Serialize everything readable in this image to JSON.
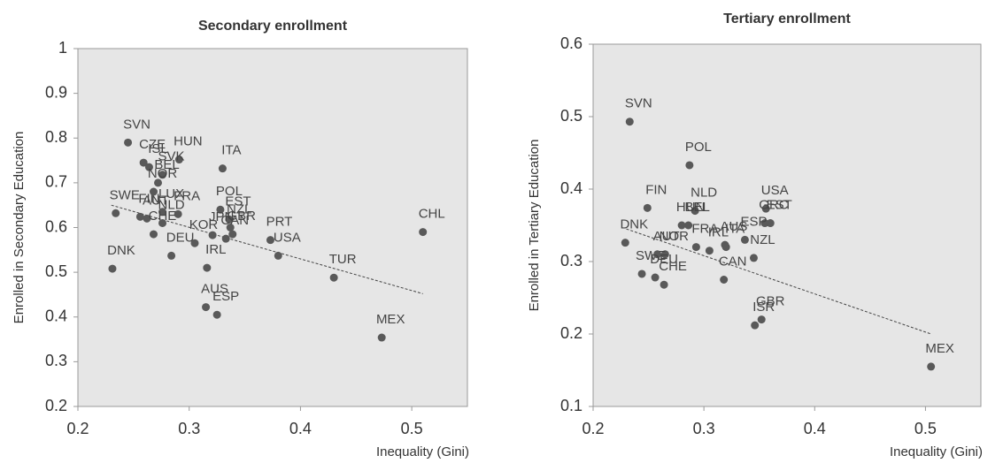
{
  "chart_data": [
    {
      "type": "scatter",
      "title": "Secondary enrollment",
      "x_label": "Inequality (Gini)",
      "y_label": "Enrolled in Secondary Education",
      "color": "#595959",
      "xlim": [
        0.2,
        0.55
      ],
      "ylim": [
        0.2,
        1
      ],
      "xticks": [
        0.2,
        0.3,
        0.4,
        0.5
      ],
      "yticks": [
        0.2,
        0.3,
        0.4,
        0.5,
        0.6,
        0.7,
        0.8,
        0.9,
        1
      ],
      "labels": [
        "SVN",
        "CZE",
        "HUN",
        "SVK",
        "ISL",
        "BEL",
        "ITA",
        "SWE",
        "FIN",
        "AUT",
        "NOR",
        "LUX",
        "FRA",
        "CHE",
        "NLD",
        "DEU",
        "KOR",
        "IRL",
        "DNK",
        "POL",
        "EST",
        "JPN",
        "NZL",
        "CAN",
        "GBR",
        "AUS",
        "ESP",
        "PRT",
        "USA",
        "TUR",
        "MEX",
        "CHL"
      ],
      "x": [
        0.245,
        0.259,
        0.291,
        0.276,
        0.264,
        0.272,
        0.33,
        0.234,
        0.256,
        0.262,
        0.268,
        0.276,
        0.29,
        0.268,
        0.276,
        0.284,
        0.305,
        0.316,
        0.231,
        0.328,
        0.336,
        0.321,
        0.337,
        0.333,
        0.339,
        0.315,
        0.325,
        0.373,
        0.38,
        0.43,
        0.473,
        0.51
      ],
      "values": [
        0.79,
        0.745,
        0.752,
        0.718,
        0.735,
        0.7,
        0.732,
        0.632,
        0.624,
        0.62,
        0.68,
        0.635,
        0.63,
        0.585,
        0.61,
        0.537,
        0.565,
        0.51,
        0.508,
        0.64,
        0.618,
        0.583,
        0.6,
        0.575,
        0.585,
        0.422,
        0.405,
        0.572,
        0.537,
        0.488,
        0.354,
        0.59
      ],
      "trendline": {
        "x": [
          0.23,
          0.51
        ],
        "values": [
          0.65,
          0.452
        ]
      }
    },
    {
      "type": "scatter",
      "title": "Tertiary enrollment",
      "x_label": "Inequality (Gini)",
      "y_label": "Enrolled in Tertiary Education",
      "color": "#595959",
      "xlim": [
        0.2,
        0.55
      ],
      "ylim": [
        0.1,
        0.6
      ],
      "xticks": [
        0.2,
        0.3,
        0.4,
        0.5
      ],
      "yticks": [
        0.1,
        0.2,
        0.3,
        0.4,
        0.5,
        0.6
      ],
      "labels": [
        "SVN",
        "POL",
        "FIN",
        "NLD",
        "USA",
        "GRC",
        "EST",
        "BEL",
        "DNK",
        "NOR",
        "HUN",
        "FRA",
        "AUS",
        "ESP",
        "ITA",
        "NZL",
        "IRL",
        "CAN",
        "SWE",
        "AUT",
        "DEU",
        "CHE",
        "GBR",
        "ISR",
        "MEX"
      ],
      "x": [
        0.233,
        0.287,
        0.249,
        0.292,
        0.356,
        0.355,
        0.36,
        0.286,
        0.229,
        0.265,
        0.28,
        0.293,
        0.319,
        0.337,
        0.32,
        0.345,
        0.305,
        0.318,
        0.244,
        0.258,
        0.256,
        0.264,
        0.352,
        0.346,
        0.505
      ],
      "values": [
        0.493,
        0.433,
        0.374,
        0.37,
        0.373,
        0.353,
        0.353,
        0.35,
        0.326,
        0.31,
        0.35,
        0.32,
        0.323,
        0.33,
        0.32,
        0.305,
        0.315,
        0.275,
        0.283,
        0.31,
        0.278,
        0.268,
        0.22,
        0.212,
        0.155
      ],
      "trendline": {
        "x": [
          0.23,
          0.505
        ],
        "values": [
          0.345,
          0.2
        ]
      }
    }
  ]
}
